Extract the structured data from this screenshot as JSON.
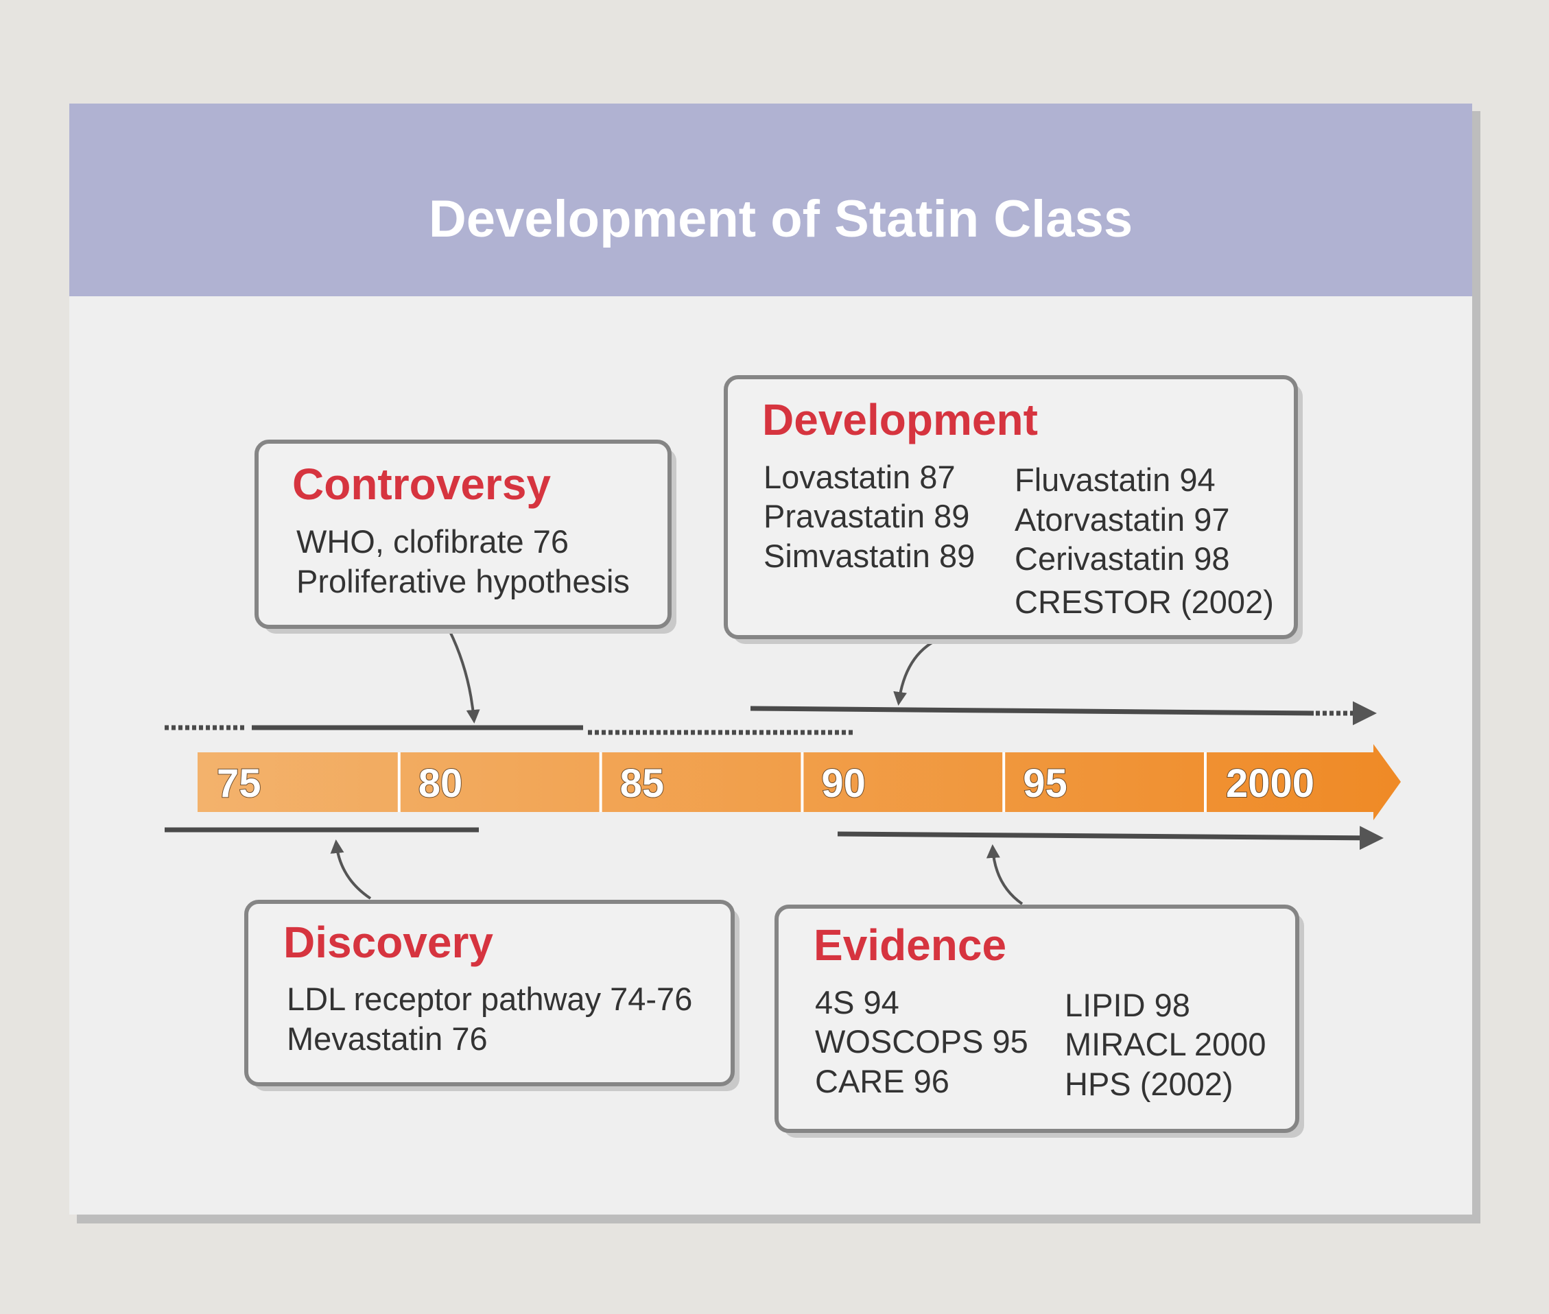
{
  "title": "Development of Statin Class",
  "timeline": {
    "labels": [
      "75",
      "80",
      "85",
      "90",
      "95",
      "2000"
    ]
  },
  "controversy": {
    "title": "Controversy",
    "lines": [
      "WHO, clofibrate 76",
      "Proliferative hypothesis"
    ]
  },
  "development": {
    "title": "Development",
    "column1": [
      "Lovastatin 87",
      "Pravastatin 89",
      "Simvastatin 89"
    ],
    "column2": [
      "Fluvastatin 94",
      "Atorvastatin 97",
      "Cerivastatin 98",
      "CRESTOR (2002)"
    ]
  },
  "discovery": {
    "title": "Discovery",
    "lines": [
      "LDL receptor pathway 74-76",
      "Mevastatin 76"
    ]
  },
  "evidence": {
    "title": "Evidence",
    "column1": [
      "4S 94",
      "WOSCOPS 95",
      "CARE 96"
    ],
    "column2": [
      "LIPID 98",
      "MIRACL 2000",
      "HPS (2002)"
    ]
  }
}
